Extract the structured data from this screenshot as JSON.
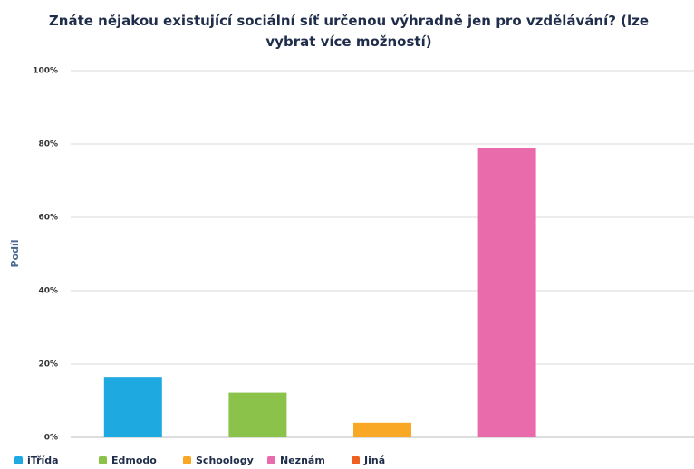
{
  "chart_data": {
    "type": "bar",
    "title": "Znáte nějakou existující sociální síť určenou výhradně jen pro vzdělávání? (lze vybrat více možností)",
    "y_label": "Podíl",
    "categories": [
      "iTřída",
      "Edmodo",
      "Schoology",
      "Neznám",
      "Jiná"
    ],
    "values": [
      16.5,
      12.2,
      4,
      78.8,
      0
    ],
    "colors": [
      "#1ea9e1",
      "#8bc34a",
      "#f9a825",
      "#e96bab",
      "#f06022"
    ],
    "ylim": [
      0,
      100
    ],
    "yticks": [
      {
        "value": 0,
        "label": "0%"
      },
      {
        "value": 20,
        "label": "20%"
      },
      {
        "value": 40,
        "label": "40%"
      },
      {
        "value": 60,
        "label": "60%"
      },
      {
        "value": 80,
        "label": "80%"
      },
      {
        "value": 100,
        "label": "100%"
      }
    ],
    "grid": true
  }
}
